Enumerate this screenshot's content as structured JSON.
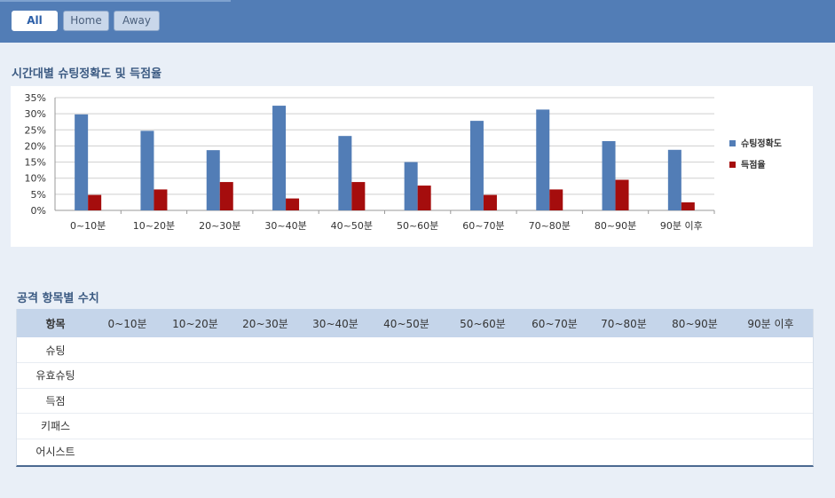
{
  "filters": {
    "all": "All",
    "home": "Home",
    "away": "Away"
  },
  "chart_section": {
    "title": "시간대별 슈팅정확도 및 득점율"
  },
  "table_section": {
    "title": "공격 항목별 수치",
    "header_label": "항목",
    "columns": [
      "0~10분",
      "10~20분",
      "20~30분",
      "30~40분",
      "40~50분",
      "50~60분",
      "60~70분",
      "70~80분",
      "80~90분",
      "90분 이후"
    ],
    "rows": [
      {
        "label": "슈팅",
        "values": [
          "",
          "",
          "",
          "",
          "",
          "",
          "",
          "",
          "",
          ""
        ]
      },
      {
        "label": "유효슈팅",
        "values": [
          "",
          "",
          "",
          "",
          "",
          "",
          "",
          "",
          "",
          ""
        ]
      },
      {
        "label": "득점",
        "values": [
          "",
          "",
          "",
          "",
          "",
          "",
          "",
          "",
          "",
          ""
        ]
      },
      {
        "label": "키패스",
        "values": [
          "",
          "",
          "",
          "",
          "",
          "",
          "",
          "",
          "",
          ""
        ]
      },
      {
        "label": "어시스트",
        "values": [
          "",
          "",
          "",
          "",
          "",
          "",
          "",
          "",
          "",
          ""
        ]
      }
    ]
  },
  "colors": {
    "series1": "#527db6",
    "series2": "#a50d0d",
    "grid": "#cfcfcf"
  },
  "chart_data": {
    "type": "bar",
    "title": "",
    "xlabel": "",
    "ylabel": "",
    "categories": [
      "0~10분",
      "10~20분",
      "20~30분",
      "30~40분",
      "40~50분",
      "50~60분",
      "60~70분",
      "70~80분",
      "80~90분",
      "90분 이후"
    ],
    "series": [
      {
        "name": "슈팅정확도",
        "values": [
          29.8,
          24.7,
          18.7,
          32.5,
          23.1,
          15.0,
          27.8,
          31.3,
          21.5,
          18.8
        ]
      },
      {
        "name": "득점율",
        "values": [
          4.8,
          6.5,
          8.8,
          3.7,
          8.8,
          7.7,
          4.8,
          6.5,
          9.5,
          2.5
        ]
      }
    ],
    "ylim": [
      0,
      35
    ],
    "yticks": [
      "0%",
      "5%",
      "10%",
      "15%",
      "20%",
      "25%",
      "30%",
      "35%"
    ],
    "grid": true,
    "legend": "right"
  }
}
